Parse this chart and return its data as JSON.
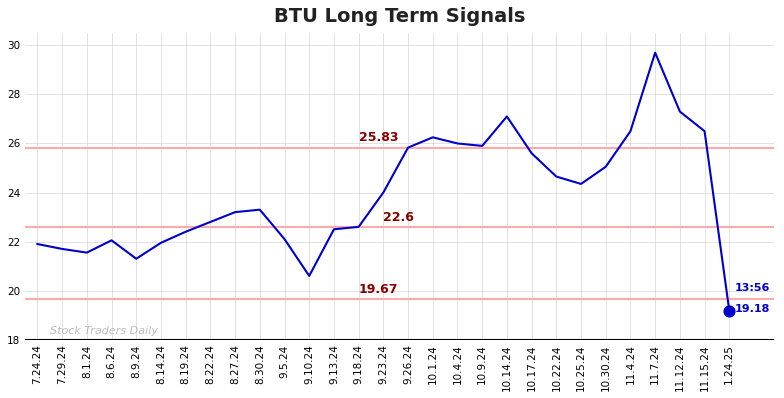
{
  "title": "BTU Long Term Signals",
  "watermark": "Stock Traders Daily",
  "x_labels": [
    "7.24.24",
    "7.29.24",
    "8.1.24",
    "8.6.24",
    "8.9.24",
    "8.14.24",
    "8.19.24",
    "8.22.24",
    "8.27.24",
    "8.30.24",
    "9.5.24",
    "9.10.24",
    "9.13.24",
    "9.18.24",
    "9.23.24",
    "9.26.24",
    "10.1.24",
    "10.4.24",
    "10.9.24",
    "10.14.24",
    "10.17.24",
    "10.22.24",
    "10.25.24",
    "10.30.24",
    "11.4.24",
    "11.7.24",
    "11.12.24",
    "11.15.24",
    "1.24.25"
  ],
  "prices": [
    21.9,
    21.7,
    21.55,
    22.05,
    21.3,
    21.95,
    22.4,
    22.8,
    23.2,
    23.3,
    22.1,
    20.6,
    22.5,
    22.6,
    24.0,
    25.83,
    26.25,
    26.0,
    25.9,
    27.1,
    25.6,
    24.65,
    24.35,
    25.05,
    26.5,
    29.7,
    27.3,
    26.5,
    19.18
  ],
  "hlines": [
    {
      "y": 25.83,
      "color": "#ffaaaa",
      "label": "25.83",
      "label_color": "#880000",
      "label_xi": 13
    },
    {
      "y": 22.6,
      "color": "#ffaaaa",
      "label": "22.6",
      "label_color": "#880000",
      "label_xi": 14
    },
    {
      "y": 19.67,
      "color": "#ffaaaa",
      "label": "19.67",
      "label_color": "#880000",
      "label_xi": 13
    }
  ],
  "line_color": "#0000cc",
  "dot_color": "#0000cc",
  "dot_size": 60,
  "ylim": [
    18,
    30.5
  ],
  "yticks": [
    18,
    20,
    22,
    24,
    26,
    28,
    30
  ],
  "annotation_time": "13:56",
  "annotation_price": "19.18",
  "annotation_color": "#0000cc",
  "background_color": "#ffffff",
  "grid_color": "#cccccc",
  "title_fontsize": 14,
  "tick_fontsize": 7.5,
  "watermark_color": "#aaaaaa",
  "title_color": "#222222"
}
